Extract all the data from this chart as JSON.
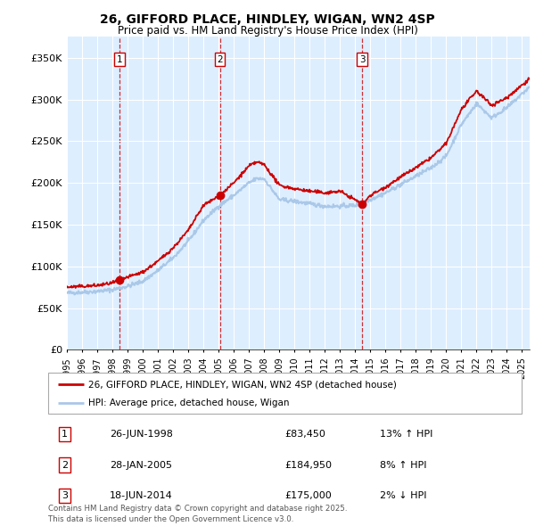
{
  "title": "26, GIFFORD PLACE, HINDLEY, WIGAN, WN2 4SP",
  "subtitle": "Price paid vs. HM Land Registry's House Price Index (HPI)",
  "sale_year_floats": [
    1998.49,
    2005.08,
    2014.46
  ],
  "sale_prices": [
    83450,
    184950,
    175000
  ],
  "sale_labels": [
    "1",
    "2",
    "3"
  ],
  "legend_line1": "26, GIFFORD PLACE, HINDLEY, WIGAN, WN2 4SP (detached house)",
  "legend_line2": "HPI: Average price, detached house, Wigan",
  "table_entries": [
    {
      "num": "1",
      "date": "26-JUN-1998",
      "price": "£83,450",
      "hpi": "13% ↑ HPI"
    },
    {
      "num": "2",
      "date": "28-JAN-2005",
      "price": "£184,950",
      "hpi": "8% ↑ HPI"
    },
    {
      "num": "3",
      "date": "18-JUN-2014",
      "price": "£175,000",
      "hpi": "2% ↓ HPI"
    }
  ],
  "footer": "Contains HM Land Registry data © Crown copyright and database right 2025.\nThis data is licensed under the Open Government Licence v3.0.",
  "price_line_color": "#cc0000",
  "hpi_line_color": "#aac8e8",
  "background_color": "#ddeeff",
  "ylim": [
    0,
    375000
  ],
  "yticks": [
    0,
    50000,
    100000,
    150000,
    200000,
    250000,
    300000,
    350000
  ],
  "ytick_labels": [
    "£0",
    "£50K",
    "£100K",
    "£150K",
    "£200K",
    "£250K",
    "£300K",
    "£350K"
  ],
  "xlim": [
    1995,
    2025.5
  ],
  "xticks": [
    1995,
    1996,
    1997,
    1998,
    1999,
    2000,
    2001,
    2002,
    2003,
    2004,
    2005,
    2006,
    2007,
    2008,
    2009,
    2010,
    2011,
    2012,
    2013,
    2014,
    2015,
    2016,
    2017,
    2018,
    2019,
    2020,
    2021,
    2022,
    2023,
    2024,
    2025
  ]
}
